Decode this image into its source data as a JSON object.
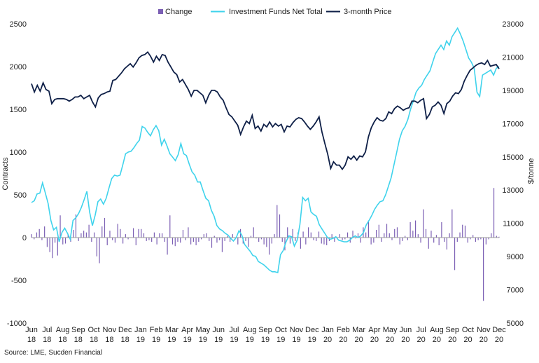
{
  "chart_data": {
    "type": "bar+line",
    "legend": {
      "placement": "top",
      "items": [
        {
          "name": "Change",
          "marker": "bar"
        },
        {
          "name": "Investment Funds Net Total",
          "marker": "line"
        },
        {
          "name": "3-month Price",
          "marker": "line"
        }
      ]
    },
    "colors": {
      "change": "#7b5fb4",
      "funds": "#3fd3ec",
      "price": "#0e1f47",
      "zero_line": "#9a9a9a"
    },
    "left_axis": {
      "title": "Contracts",
      "range": [
        -1000,
        2500
      ],
      "ticks": [
        "2500",
        "2000",
        "1500",
        "1000",
        "500",
        "0",
        "-500",
        "-1000"
      ]
    },
    "right_axis": {
      "title": "$/tonne",
      "range": [
        5000,
        23000
      ],
      "ticks": [
        "23000",
        "21000",
        "19000",
        "17000",
        "15000",
        "13000",
        "11000",
        "9000",
        "7000",
        "5000"
      ]
    },
    "x_axis": {
      "start": "2018-06",
      "months": 31,
      "labels": [
        {
          "month": "Jun",
          "year": "18"
        },
        {
          "month": "Jul",
          "year": "18"
        },
        {
          "month": "Aug",
          "year": "18"
        },
        {
          "month": "Sep",
          "year": "18"
        },
        {
          "month": "Oct",
          "year": "18"
        },
        {
          "month": "Nov",
          "year": "18"
        },
        {
          "month": "Dec",
          "year": "18"
        },
        {
          "month": "Jan",
          "year": "19"
        },
        {
          "month": "Feb",
          "year": "19"
        },
        {
          "month": "Mar",
          "year": "19"
        },
        {
          "month": "Apr",
          "year": "19"
        },
        {
          "month": "May",
          "year": "19"
        },
        {
          "month": "Jun",
          "year": "19"
        },
        {
          "month": "Jul",
          "year": "19"
        },
        {
          "month": "Aug",
          "year": "19"
        },
        {
          "month": "Sep",
          "year": "19"
        },
        {
          "month": "Oct",
          "year": "19"
        },
        {
          "month": "Nov",
          "year": "19"
        },
        {
          "month": "Dec",
          "year": "19"
        },
        {
          "month": "Jan",
          "year": "20"
        },
        {
          "month": "Feb",
          "year": "20"
        },
        {
          "month": "Mar",
          "year": "20"
        },
        {
          "month": "Apr",
          "year": "20"
        },
        {
          "month": "May",
          "year": "20"
        },
        {
          "month": "Jun",
          "year": "20"
        },
        {
          "month": "Jul",
          "year": "20"
        },
        {
          "month": "Aug",
          "year": "20"
        },
        {
          "month": "Sep",
          "year": "20"
        },
        {
          "month": "Oct",
          "year": "20"
        },
        {
          "month": "Nov",
          "year": "20"
        },
        {
          "month": "Dec",
          "year": "20"
        }
      ]
    },
    "series": [
      {
        "name": "3-month Price",
        "axis": "right",
        "values": [
          19400,
          18900,
          19300,
          18950,
          19450,
          19050,
          18950,
          18200,
          18450,
          18500,
          18500,
          18500,
          18450,
          18350,
          18450,
          18600,
          18600,
          18700,
          18500,
          18600,
          18700,
          18300,
          18000,
          18550,
          18750,
          18800,
          18900,
          18950,
          19600,
          19650,
          19850,
          20050,
          20300,
          20450,
          20600,
          20400,
          20650,
          20950,
          21100,
          21150,
          21300,
          21050,
          20700,
          21050,
          20800,
          21150,
          21100,
          20700,
          20400,
          20100,
          19950,
          19500,
          19650,
          19350,
          19050,
          18650,
          19000,
          19000,
          18850,
          18700,
          18250,
          18700,
          19000,
          19000,
          18900,
          18600,
          18400,
          17950,
          17550,
          17400,
          17150,
          16900,
          16350,
          16800,
          17150,
          17000,
          17500,
          16700,
          16850,
          16550,
          16950,
          16800,
          17100,
          16800,
          17000,
          16850,
          16950,
          16500,
          16850,
          16800,
          17050,
          17250,
          17350,
          17300,
          17100,
          16850,
          16650,
          16850,
          17100,
          17400,
          16500,
          15800,
          15150,
          14300,
          14700,
          14500,
          14500,
          14250,
          14500,
          15000,
          14850,
          15050,
          14800,
          15050,
          15000,
          15300,
          16200,
          16750,
          17100,
          17350,
          17200,
          17150,
          17300,
          17700,
          17600,
          17900,
          18050,
          17950,
          17800,
          17900,
          17950,
          18350,
          18350,
          18250,
          18400,
          18500,
          17300,
          17550,
          18000,
          18100,
          18300,
          18100,
          17600,
          18200,
          18350,
          18650,
          18850,
          18800,
          19050,
          19550,
          19900,
          20200,
          20350,
          20500,
          20600,
          20650,
          20550,
          20800,
          20450,
          20500,
          20550,
          20300
        ]
      },
      {
        "name": "Investment Funds Net Total",
        "axis": "left",
        "values": [
          410,
          430,
          510,
          520,
          640,
          520,
          400,
          200,
          90,
          120,
          -50,
          60,
          110,
          50,
          -20,
          200,
          230,
          280,
          350,
          440,
          540,
          300,
          140,
          260,
          420,
          450,
          390,
          460,
          580,
          690,
          730,
          720,
          730,
          850,
          980,
          1000,
          1010,
          1050,
          1100,
          1140,
          1300,
          1280,
          1230,
          1190,
          1260,
          1310,
          1250,
          1080,
          1150,
          1070,
          980,
          940,
          900,
          970,
          1100,
          980,
          960,
          860,
          770,
          730,
          650,
          650,
          550,
          460,
          430,
          320,
          250,
          140,
          100,
          80,
          50,
          30,
          -10,
          -40,
          0,
          80,
          30,
          -80,
          -120,
          -160,
          -210,
          -220,
          -280,
          -300,
          -320,
          -350,
          -380,
          -400,
          -400,
          -410,
          -200,
          -150,
          -50,
          20,
          10,
          -100,
          -30,
          150,
          470,
          430,
          460,
          300,
          270,
          250,
          150,
          100,
          50,
          0,
          -20,
          -10,
          10,
          -30,
          -40,
          -50,
          -50,
          -30,
          0,
          20,
          0,
          20,
          60,
          150,
          200,
          260,
          330,
          380,
          420,
          430,
          500,
          600,
          700,
          850,
          1000,
          1150,
          1250,
          1300,
          1380,
          1500,
          1600,
          1700,
          1750,
          1780,
          1850,
          1900,
          1950,
          2050,
          2150,
          2200,
          2250,
          2200,
          2300,
          2250,
          2350,
          2400,
          2450,
          2380,
          2300,
          2200,
          2100,
          2050,
          1980,
          1700,
          1650,
          1900,
          1920,
          1940,
          1960,
          1900,
          1980,
          2000
        ]
      },
      {
        "name": "Change",
        "axis": "left",
        "values": [
          40,
          -20,
          60,
          100,
          -30,
          130,
          -110,
          -170,
          -240,
          -60,
          -210,
          260,
          -80,
          -70,
          30,
          -50,
          90,
          270,
          -40,
          50,
          80,
          60,
          150,
          -50,
          60,
          -220,
          -300,
          130,
          230,
          -90,
          80,
          -30,
          -60,
          160,
          100,
          -70,
          40,
          -20,
          0,
          110,
          -90,
          100,
          100,
          50,
          -40,
          -30,
          -50,
          60,
          -80,
          50,
          50,
          -50,
          -200,
          260,
          -80,
          -100,
          -50,
          -60,
          90,
          -30,
          120,
          -80,
          -50,
          -90,
          -50,
          -20,
          40,
          50,
          -40,
          -120,
          20,
          -60,
          -30,
          -170,
          -40,
          20,
          -50,
          40,
          -20,
          -80,
          100,
          -70,
          -40,
          -110,
          20,
          120,
          -10,
          -50,
          -20,
          -80,
          -110,
          -200,
          -70,
          40,
          380,
          270,
          -50,
          -150,
          120,
          -70,
          100,
          -40,
          60,
          -130,
          70,
          -80,
          120,
          60,
          -30,
          -40,
          70,
          -70,
          -80,
          -90,
          -40,
          40,
          -50,
          -10,
          40,
          -30,
          -20,
          60,
          -60,
          80,
          -10,
          50,
          -60,
          120,
          60,
          200,
          -80,
          -60,
          90,
          150,
          -50,
          50,
          160,
          50,
          -30,
          100,
          120,
          -80,
          -40,
          20,
          -30,
          180,
          80,
          200,
          40,
          -60,
          330,
          100,
          -130,
          80,
          -60,
          30,
          -90,
          180,
          -50,
          -140,
          50,
          330,
          -380,
          -50,
          60,
          150,
          140,
          -60,
          -20,
          30,
          -50,
          -30,
          -20,
          -740,
          -80,
          -20,
          50,
          580,
          20,
          10
        ]
      }
    ],
    "source": "Source: LME, Sucden Financial"
  }
}
